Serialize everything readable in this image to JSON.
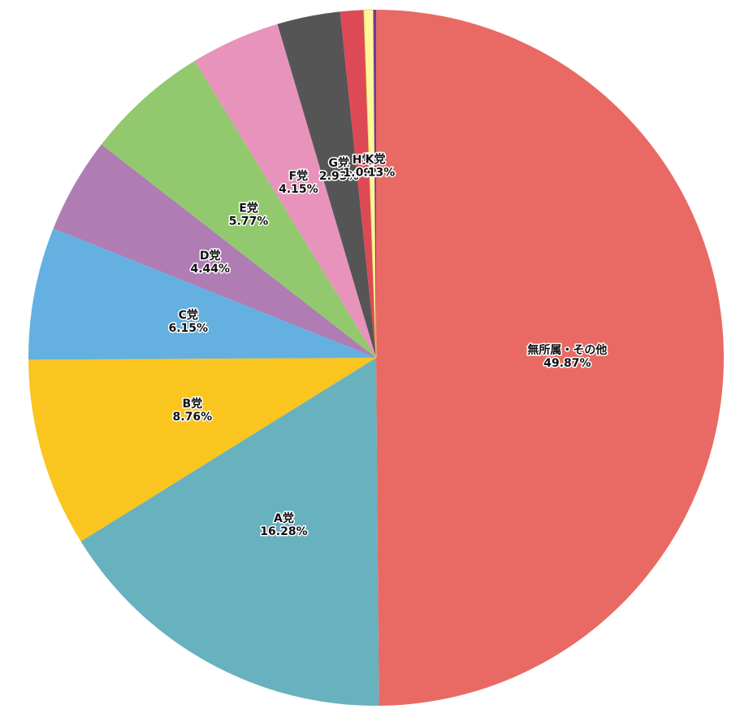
{
  "chart_data": {
    "type": "pie",
    "categories": [
      "無所属・その他",
      "A党",
      "B党",
      "C党",
      "D党",
      "E党",
      "F党",
      "G党",
      "H党",
      null,
      "K党"
    ],
    "values": [
      49.87,
      16.28,
      8.76,
      6.15,
      4.44,
      5.77,
      4.15,
      2.93,
      1.09,
      0.43,
      0.13
    ],
    "value_labels": [
      "49.87%",
      "16.28%",
      "8.76%",
      "6.15%",
      "4.44%",
      "5.77%",
      "4.15%",
      "2.93%",
      "1.09%",
      null,
      "0.13%"
    ],
    "colors": [
      "#e96a64",
      "#68b1bf",
      "#f9c51e",
      "#64b0e1",
      "#b07cb4",
      "#92c86e",
      "#e893bb",
      "#555555",
      "#dd4955",
      "#fff59d",
      "#6a3d9a"
    ]
  }
}
